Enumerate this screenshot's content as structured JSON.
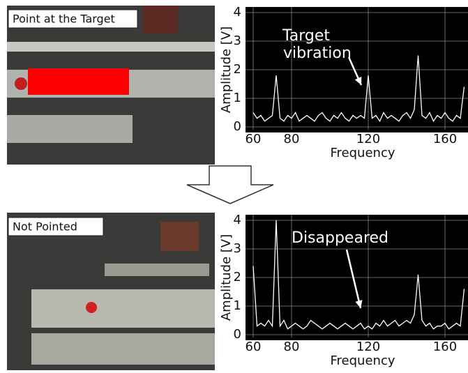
{
  "chart_data": [
    {
      "type": "line",
      "panel_label": "Point at the Target",
      "annotation": [
        "Target",
        "vibration"
      ],
      "x_label": "Frequency",
      "y_label": "Amplitude [V]",
      "xlim": [
        56,
        172
      ],
      "ylim": [
        0,
        4
      ],
      "xticks": [
        60,
        80,
        120,
        160
      ],
      "yticks": [
        0,
        1,
        2,
        3,
        4
      ],
      "grid": true,
      "x": [
        60,
        62,
        64,
        66,
        68,
        70,
        72,
        74,
        76,
        78,
        80,
        82,
        84,
        86,
        88,
        90,
        92,
        94,
        96,
        98,
        100,
        102,
        104,
        106,
        108,
        110,
        112,
        114,
        116,
        118,
        120,
        122,
        124,
        126,
        128,
        130,
        132,
        134,
        136,
        138,
        140,
        142,
        144,
        146,
        148,
        150,
        152,
        154,
        156,
        158,
        160,
        162,
        164,
        166,
        168,
        170
      ],
      "series": [
        {
          "color": "#ffffff",
          "values": [
            0.5,
            0.3,
            0.4,
            0.2,
            0.3,
            0.4,
            1.8,
            0.3,
            0.2,
            0.4,
            0.3,
            0.5,
            0.2,
            0.3,
            0.4,
            0.3,
            0.2,
            0.4,
            0.5,
            0.3,
            0.2,
            0.4,
            0.3,
            0.5,
            0.3,
            0.2,
            0.4,
            0.3,
            0.4,
            0.3,
            1.8,
            0.3,
            0.4,
            0.2,
            0.5,
            0.3,
            0.4,
            0.3,
            0.2,
            0.4,
            0.5,
            0.3,
            0.6,
            2.5,
            0.4,
            0.3,
            0.5,
            0.2,
            0.4,
            0.3,
            0.5,
            0.3,
            0.2,
            0.4,
            0.3,
            1.4
          ]
        }
      ]
    },
    {
      "type": "line",
      "panel_label": "Not Pointed",
      "annotation": [
        "Disappeared"
      ],
      "x_label": "Frequency",
      "y_label": "Amplitude [V]",
      "xlim": [
        56,
        172
      ],
      "ylim": [
        0,
        4
      ],
      "xticks": [
        60,
        80,
        120,
        160
      ],
      "yticks": [
        0,
        1,
        2,
        3,
        4
      ],
      "grid": true,
      "x": [
        60,
        62,
        64,
        66,
        68,
        70,
        72,
        74,
        76,
        78,
        80,
        82,
        84,
        86,
        88,
        90,
        92,
        94,
        96,
        98,
        100,
        102,
        104,
        106,
        108,
        110,
        112,
        114,
        116,
        118,
        120,
        122,
        124,
        126,
        128,
        130,
        132,
        134,
        136,
        138,
        140,
        142,
        144,
        146,
        148,
        150,
        152,
        154,
        156,
        158,
        160,
        162,
        164,
        166,
        168,
        170
      ],
      "series": [
        {
          "color": "#ffffff",
          "values": [
            2.4,
            0.3,
            0.4,
            0.3,
            0.5,
            0.3,
            4.0,
            0.3,
            0.5,
            0.2,
            0.3,
            0.4,
            0.3,
            0.2,
            0.3,
            0.5,
            0.4,
            0.3,
            0.2,
            0.3,
            0.4,
            0.3,
            0.2,
            0.3,
            0.4,
            0.3,
            0.2,
            0.3,
            0.4,
            0.2,
            0.3,
            0.2,
            0.4,
            0.3,
            0.5,
            0.3,
            0.4,
            0.5,
            0.3,
            0.4,
            0.5,
            0.4,
            0.7,
            2.1,
            0.5,
            0.3,
            0.4,
            0.2,
            0.3,
            0.3,
            0.4,
            0.2,
            0.3,
            0.4,
            0.3,
            1.6
          ]
        }
      ]
    }
  ]
}
